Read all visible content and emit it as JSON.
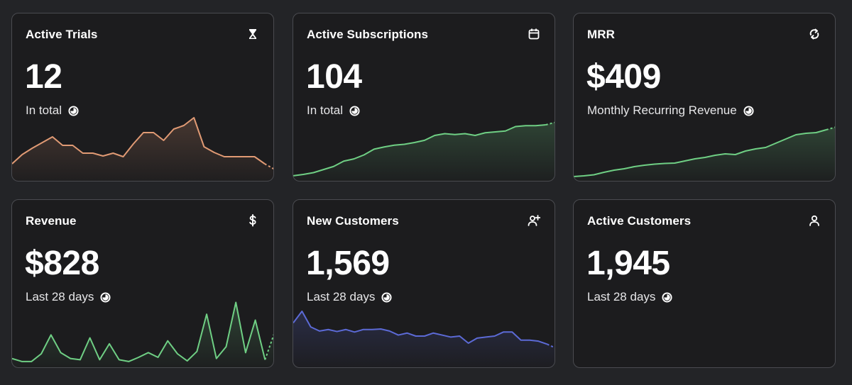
{
  "cards": [
    {
      "title": "Active Trials",
      "value": "12",
      "subtitle": "In total",
      "icon": "hourglass-icon",
      "color": "#e09a74",
      "series": [
        2,
        3.3,
        4.2,
        5,
        5.8,
        4.6,
        4.6,
        3.5,
        3.5,
        3.1,
        3.5,
        3,
        4.8,
        6.4,
        6.4,
        5.3,
        6.9,
        7.4,
        8.5,
        4.4,
        3.6,
        3,
        3,
        3,
        3,
        2,
        1.2
      ],
      "ylim": [
        0,
        10
      ]
    },
    {
      "title": "Active Subscriptions",
      "value": "104",
      "subtitle": "In total",
      "icon": "calendar-icon",
      "color": "#6fcf84",
      "series": [
        0.5,
        0.8,
        1.2,
        1.9,
        2.6,
        3.8,
        4.3,
        5.2,
        6.5,
        7.0,
        7.4,
        7.6,
        8.0,
        8.5,
        9.6,
        10.0,
        9.8,
        10.0,
        9.6,
        10.2,
        10.4,
        10.6,
        11.6,
        11.8,
        11.8,
        12.0,
        12.6
      ],
      "ylim": [
        0,
        16
      ]
    },
    {
      "title": "MRR",
      "value": "$409",
      "subtitle": "Monthly Recurring Revenue",
      "icon": "recurring-icon",
      "color": "#6fcf84",
      "series": [
        0.4,
        0.6,
        0.9,
        1.6,
        2.2,
        2.6,
        3.2,
        3.6,
        3.9,
        4.1,
        4.2,
        4.8,
        5.4,
        5.8,
        6.4,
        6.8,
        6.6,
        7.6,
        8.2,
        8.6,
        9.8,
        11.0,
        12.2,
        12.6,
        12.8,
        13.6,
        14.4
      ],
      "ylim": [
        0,
        20
      ]
    },
    {
      "title": "Revenue",
      "value": "$828",
      "subtitle": "Last 28 days",
      "icon": "dollar-icon",
      "color": "#6fcf84",
      "series": [
        1,
        0.5,
        0.5,
        1.8,
        5,
        2,
        1,
        0.8,
        4.5,
        0.8,
        3.5,
        0.8,
        0.5,
        1.2,
        2,
        1.2,
        4,
        1.8,
        0.6,
        2.2,
        8.5,
        1,
        3,
        10.5,
        2,
        7.5,
        0.8,
        5.5
      ],
      "ylim": [
        0,
        12
      ]
    },
    {
      "title": "New Customers",
      "value": "1,569",
      "subtitle": "Last 28 days",
      "icon": "add-user-icon",
      "color": "#5c6ad6",
      "series": [
        8.2,
        10.5,
        7.4,
        6.6,
        6.9,
        6.5,
        6.9,
        6.4,
        6.9,
        6.9,
        7.0,
        6.6,
        5.8,
        6.2,
        5.6,
        5.6,
        6.2,
        5.8,
        5.4,
        5.6,
        4.2,
        5.2,
        5.4,
        5.6,
        6.4,
        6.4,
        4.8,
        4.8,
        4.6,
        4.0,
        3.2
      ],
      "ylim": [
        0,
        14
      ]
    },
    {
      "title": "Active Customers",
      "value": "1,945",
      "subtitle": "Last 28 days",
      "icon": "user-icon",
      "color": "",
      "series": [],
      "ylim": [
        0,
        1
      ]
    }
  ]
}
